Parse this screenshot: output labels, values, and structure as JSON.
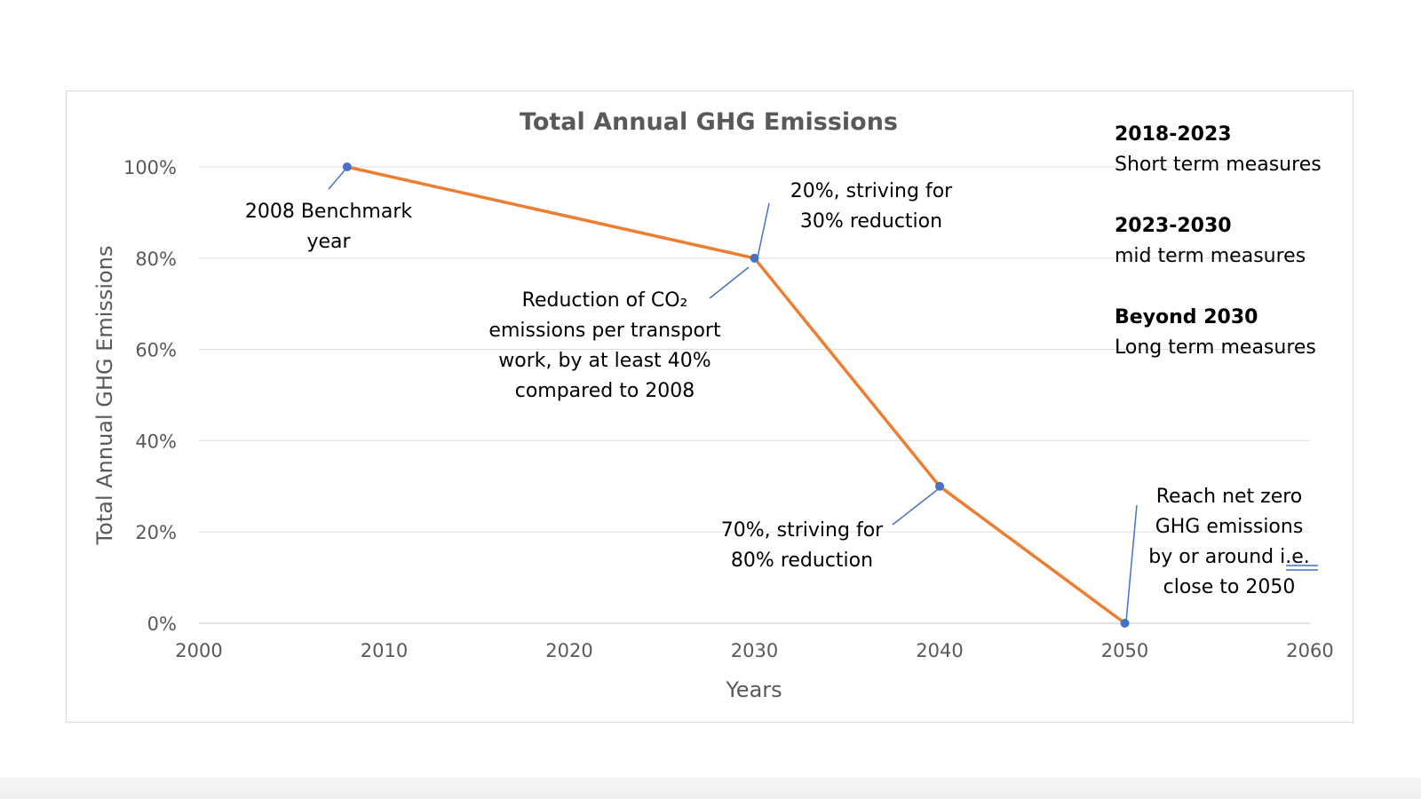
{
  "chart_data": {
    "type": "line",
    "title": "Total Annual GHG Emissions",
    "xlabel": "Years",
    "ylabel": "Total Annual GHG Emissions",
    "xlim": [
      2000,
      2060
    ],
    "ylim": [
      0,
      100
    ],
    "x_ticks": [
      "2000",
      "2010",
      "2020",
      "2030",
      "2040",
      "2050",
      "2060"
    ],
    "y_ticks": [
      "0%",
      "20%",
      "40%",
      "60%",
      "80%",
      "100%"
    ],
    "grid": true,
    "series": [
      {
        "color": "#ed7d31",
        "marker_color": "#4472c4",
        "x": [
          2008,
          2030,
          2040,
          2050
        ],
        "y": [
          100,
          80,
          30,
          0
        ]
      }
    ],
    "annotations": [
      {
        "lines": [
          "2008 Benchmark",
          "year"
        ],
        "point": 0
      },
      {
        "lines": [
          "20%, striving for",
          "30% reduction"
        ],
        "point": 1
      },
      {
        "lines": [
          "Reduction of CO₂",
          "emissions per transport",
          "work, by at least 40%",
          "compared to 2008"
        ],
        "point": 1
      },
      {
        "lines": [
          "70%, striving for",
          "80% reduction"
        ],
        "point": 2
      },
      {
        "lines": [
          "Reach net zero",
          "GHG emissions",
          "by or around i.e.",
          "close to 2050"
        ],
        "point": 3
      }
    ],
    "phases": [
      {
        "range": "2018-2023",
        "description": "Short term measures"
      },
      {
        "range": "2023-2030",
        "description": "mid term measures"
      },
      {
        "range": "Beyond 2030",
        "description": "Long term measures"
      }
    ]
  }
}
